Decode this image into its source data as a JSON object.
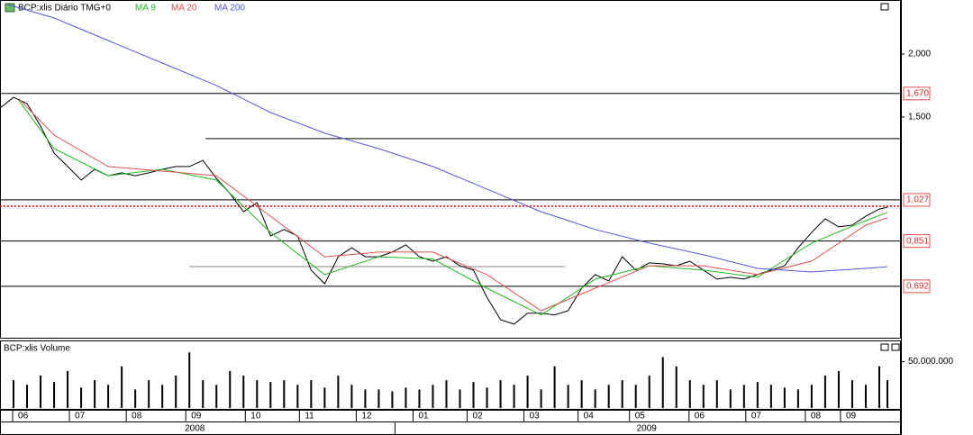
{
  "chart_data": {
    "type": "line",
    "title": "BCP:xlis Diário TMG+0",
    "log_scale": true,
    "xlim": [
      0,
      333
    ],
    "xticks": [
      {
        "value": 8,
        "label": "06"
      },
      {
        "value": 29,
        "label": "07"
      },
      {
        "value": 50,
        "label": "08"
      },
      {
        "value": 72,
        "label": "09"
      },
      {
        "value": 94,
        "label": "10"
      },
      {
        "value": 114,
        "label": "11"
      },
      {
        "value": 135,
        "label": "12"
      },
      {
        "value": 156,
        "label": "01"
      },
      {
        "value": 176,
        "label": "02"
      },
      {
        "value": 197,
        "label": "03"
      },
      {
        "value": 217,
        "label": "04"
      },
      {
        "value": 236,
        "label": "05"
      },
      {
        "value": 258,
        "label": "06"
      },
      {
        "value": 279,
        "label": "07"
      },
      {
        "value": 301,
        "label": "08"
      },
      {
        "value": 314,
        "label": "09"
      }
    ],
    "years": [
      {
        "value": 72,
        "label": "2008"
      },
      {
        "value": 239,
        "label": "2009"
      }
    ],
    "year_boundary": 146,
    "ylim": [
      0.547,
      2.56
    ],
    "yticks": [
      {
        "value": 2.0,
        "label": "2,000"
      },
      {
        "value": 1.5,
        "label": "1,500"
      }
    ],
    "levels": [
      {
        "value": 1.67,
        "label": "1,670"
      },
      {
        "value": 1.027,
        "label": "1,027"
      },
      {
        "value": 0.851,
        "label": "0,851"
      },
      {
        "value": 0.692,
        "label": "0,692"
      }
    ],
    "trendlines": [
      {
        "y": 1.359,
        "x": [
          76,
          333
        ],
        "color": "#000000"
      },
      {
        "y": 0.757,
        "x": [
          70,
          209
        ],
        "color": "#888888"
      }
    ],
    "current_price": 0.998,
    "series": [
      {
        "name": "BCP:xlis",
        "color": "#000000",
        "x": [
          0,
          5,
          10,
          15,
          20,
          25,
          30,
          35,
          40,
          45,
          50,
          55,
          60,
          65,
          70,
          75,
          80,
          85,
          90,
          95,
          100,
          105,
          110,
          115,
          120,
          125,
          130,
          135,
          140,
          145,
          150,
          155,
          160,
          165,
          170,
          175,
          180,
          185,
          190,
          195,
          200,
          205,
          210,
          215,
          220,
          225,
          230,
          235,
          240,
          245,
          250,
          255,
          260,
          265,
          270,
          275,
          280,
          285,
          290,
          295,
          300,
          305,
          310,
          315,
          320,
          325,
          328
        ],
        "values": [
          1.562,
          1.641,
          1.595,
          1.439,
          1.271,
          1.196,
          1.124,
          1.181,
          1.147,
          1.162,
          1.147,
          1.162,
          1.181,
          1.196,
          1.196,
          1.23,
          1.133,
          1.057,
          0.973,
          1.014,
          0.871,
          0.897,
          0.871,
          0.745,
          0.7,
          0.792,
          0.825,
          0.792,
          0.792,
          0.809,
          0.836,
          0.792,
          0.776,
          0.792,
          0.76,
          0.745,
          0.658,
          0.594,
          0.582,
          0.612,
          0.612,
          0.607,
          0.619,
          0.686,
          0.73,
          0.709,
          0.792,
          0.745,
          0.77,
          0.767,
          0.76,
          0.776,
          0.745,
          0.715,
          0.721,
          0.715,
          0.73,
          0.745,
          0.76,
          0.825,
          0.885,
          0.942,
          0.908,
          0.915,
          0.953,
          0.985,
          0.993
        ]
      },
      {
        "name": "MA 9",
        "color": "#22bb22",
        "x": [
          7,
          20,
          40,
          60,
          80,
          100,
          120,
          140,
          160,
          180,
          200,
          220,
          240,
          260,
          280,
          300,
          320,
          328
        ],
        "values": [
          1.617,
          1.298,
          1.147,
          1.181,
          1.124,
          0.885,
          0.73,
          0.792,
          0.784,
          0.686,
          0.607,
          0.715,
          0.76,
          0.745,
          0.721,
          0.843,
          0.934,
          0.97
        ]
      },
      {
        "name": "MA 20",
        "color": "#e05050",
        "x": [
          7,
          20,
          40,
          60,
          80,
          100,
          120,
          140,
          160,
          180,
          200,
          220,
          240,
          260,
          280,
          300,
          320,
          328
        ],
        "values": [
          1.629,
          1.381,
          1.196,
          1.171,
          1.147,
          0.953,
          0.792,
          0.809,
          0.809,
          0.73,
          0.619,
          0.686,
          0.76,
          0.76,
          0.73,
          0.776,
          0.915,
          0.946
        ]
      },
      {
        "name": "MA 200",
        "color": "#5555dd",
        "x": [
          3,
          20,
          40,
          60,
          80,
          100,
          120,
          140,
          160,
          180,
          200,
          220,
          240,
          260,
          280,
          300,
          320,
          328
        ],
        "values": [
          2.507,
          2.358,
          2.127,
          1.919,
          1.732,
          1.531,
          1.393,
          1.298,
          1.196,
          1.079,
          0.973,
          0.897,
          0.843,
          0.799,
          0.751,
          0.739,
          0.751,
          0.757
        ]
      }
    ],
    "volume": {
      "title": "BCP:xlis Volume",
      "color": "#000000",
      "ylim": [
        0,
        71000000
      ],
      "yticks": [
        {
          "value": 50000000,
          "label": "50.000.000"
        }
      ],
      "values": [
        20000000,
        30000000,
        25000000,
        35000000,
        28000000,
        40000000,
        22000000,
        30000000,
        25000000,
        45000000,
        20000000,
        30000000,
        25000000,
        35000000,
        60000000,
        30000000,
        25000000,
        40000000,
        35000000,
        30000000,
        28000000,
        30000000,
        25000000,
        30000000,
        22000000,
        35000000,
        25000000,
        20000000,
        20000000,
        18000000,
        22000000,
        20000000,
        25000000,
        30000000,
        20000000,
        28000000,
        22000000,
        30000000,
        25000000,
        35000000,
        20000000,
        45000000,
        25000000,
        30000000,
        20000000,
        25000000,
        30000000,
        25000000,
        35000000,
        55000000,
        45000000,
        30000000,
        25000000,
        30000000,
        20000000,
        25000000,
        28000000,
        25000000,
        22000000,
        20000000,
        25000000,
        35000000,
        40000000,
        30000000,
        25000000,
        45000000,
        30000000
      ]
    }
  }
}
